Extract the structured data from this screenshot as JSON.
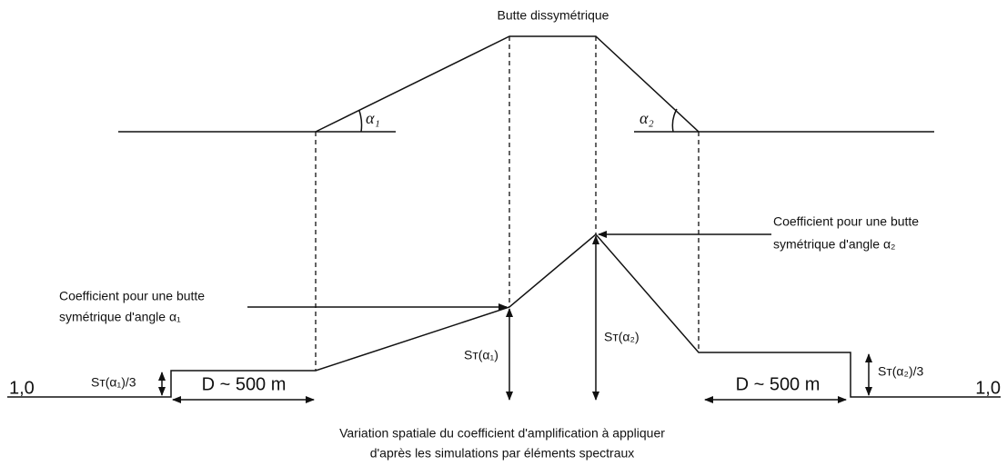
{
  "title": "Butte dissymétrique",
  "top_profile": {
    "angles": [
      "α₁",
      "α₂"
    ]
  },
  "annotations": {
    "left": [
      "Coefficient pour une butte",
      "symétrique d'angle α₁"
    ],
    "right": [
      "Coefficient pour une butte",
      "symétrique d'angle α₂"
    ]
  },
  "labels": {
    "st_alpha1": "Sт(α₁)",
    "st_alpha2": "Sт(α₂)",
    "st_alpha1_third": "Sт(α₁)/3",
    "st_alpha2_third": "Sт(α₂)/3",
    "base_left": "1,0",
    "base_right": "1,0",
    "distance_left": "D ~ 500 m",
    "distance_right": "D ~ 500 m"
  },
  "caption": [
    "Variation spatiale du coefficient d'amplification à appliquer",
    "d'après les simulations par éléments spectraux"
  ]
}
